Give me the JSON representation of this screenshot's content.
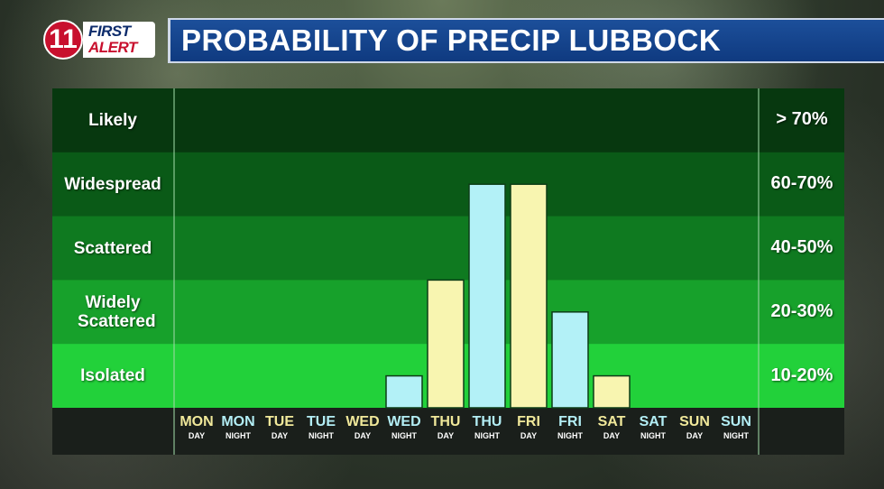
{
  "logo": {
    "number": "11",
    "line1": "FIRST",
    "line2": "ALERT"
  },
  "title": "PROBABILITY OF PRECIP LUBBOCK",
  "colors": {
    "day_bar": "#f8f5b0",
    "night_bar": "#b3f1f7",
    "day_text": "#f0e89a",
    "night_text": "#b3eef5",
    "band_likely": "#07380f",
    "band_widespread": "#0a5a17",
    "band_scattered": "#0f7a20",
    "band_widely_scattered": "#17a12b",
    "band_isolated": "#22d13a"
  },
  "chart_data": {
    "type": "bar",
    "title": "PROBABILITY OF PRECIP LUBBOCK",
    "categories": [
      {
        "day": "MON",
        "period": "DAY"
      },
      {
        "day": "MON",
        "period": "NIGHT"
      },
      {
        "day": "TUE",
        "period": "DAY"
      },
      {
        "day": "TUE",
        "period": "NIGHT"
      },
      {
        "day": "WED",
        "period": "DAY"
      },
      {
        "day": "WED",
        "period": "NIGHT"
      },
      {
        "day": "THU",
        "period": "DAY"
      },
      {
        "day": "THU",
        "period": "NIGHT"
      },
      {
        "day": "FRI",
        "period": "DAY"
      },
      {
        "day": "FRI",
        "period": "NIGHT"
      },
      {
        "day": "SAT",
        "period": "DAY"
      },
      {
        "day": "SAT",
        "period": "NIGHT"
      },
      {
        "day": "SUN",
        "period": "DAY"
      },
      {
        "day": "SUN",
        "period": "NIGHT"
      }
    ],
    "values": [
      0,
      0,
      0,
      0,
      0,
      0.5,
      2,
      3.5,
      3.5,
      1.5,
      0.5,
      0,
      0,
      0
    ],
    "value_scale": "bands (1 = Isolated, 2 = Widely Scattered, 3 = Scattered, 4 = Widespread, 5 = Likely)",
    "bands": [
      {
        "label": "Likely",
        "range": "> 70%"
      },
      {
        "label": "Widespread",
        "range": "60-70%"
      },
      {
        "label": "Scattered",
        "range": "40-50%"
      },
      {
        "label": "Widely Scattered",
        "range": "20-30%"
      },
      {
        "label": "Isolated",
        "range": "10-20%"
      }
    ],
    "ylim": [
      0,
      5
    ]
  }
}
